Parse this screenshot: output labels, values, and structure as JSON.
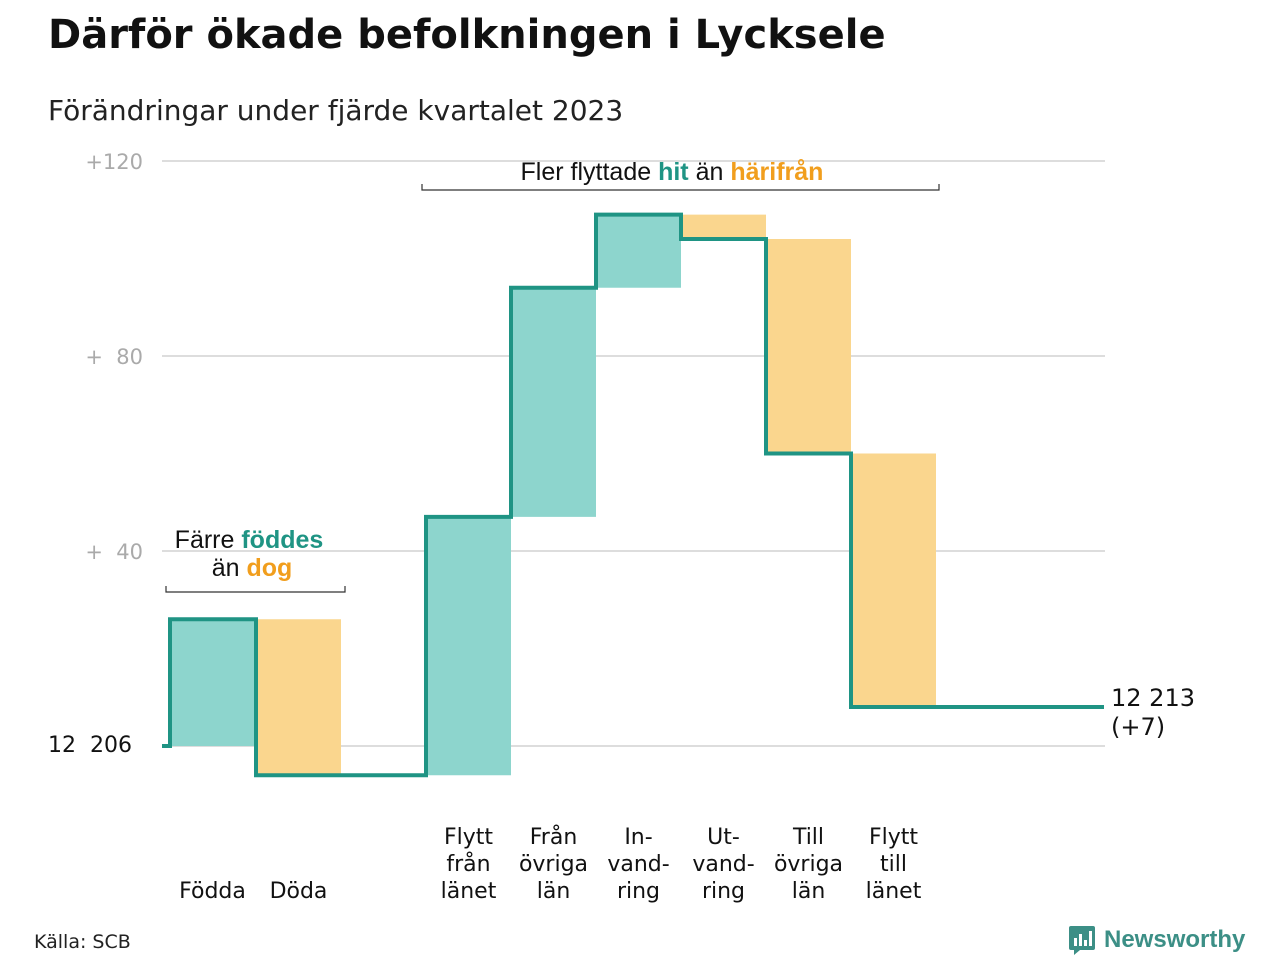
{
  "header": {
    "title": "Därför ökade befolkningen i Lycksele",
    "subtitle": "Förändringar under fjärde kvartalet 2023"
  },
  "chart_data": {
    "type": "bar",
    "subtype": "waterfall",
    "start_value": 12206,
    "start_label": "12  206",
    "end_value": 12213,
    "end_label": "12 213",
    "end_change_label": "(+7)",
    "y_ticks": [
      {
        "value": 120,
        "label": "+120"
      },
      {
        "value": 80,
        "label": "+  80"
      },
      {
        "value": 40,
        "label": "+  40"
      },
      {
        "value": 0,
        "label": ""
      }
    ],
    "ylim": [
      -6,
      120
    ],
    "grid": true,
    "steps": [
      {
        "label": "Födda",
        "delta": 26,
        "direction": "in"
      },
      {
        "label": "Döda",
        "delta": -32,
        "direction": "out"
      },
      {
        "label": "Flytt\nfrån\nlänet",
        "delta": 53,
        "direction": "in"
      },
      {
        "label": "Från\növriga\nlän",
        "delta": 47,
        "direction": "in"
      },
      {
        "label": "In-\nvand-\nring",
        "delta": 15,
        "direction": "in"
      },
      {
        "label": "Ut-\nvand-\nring",
        "delta": -5,
        "direction": "out"
      },
      {
        "label": "Till\növriga\nlän",
        "delta": -44,
        "direction": "out"
      },
      {
        "label": "Flytt\ntill\nlänet",
        "delta": -52,
        "direction": "out"
      }
    ],
    "annotations": {
      "birth": {
        "pre": "Färre",
        "highlight1": "föddes",
        "line2_pre": "än",
        "highlight2": "dog"
      },
      "migration": {
        "pre": "Fler flyttade",
        "highlight1": "hit",
        "mid": "än",
        "highlight2": "härifrån"
      }
    },
    "colors": {
      "in_fill": "#8dd5cd",
      "out_fill": "#fad68e",
      "line": "#1f9484",
      "in_text": "#1f9484",
      "out_text": "#f19e1d",
      "grid": "#dddddd",
      "tick_text": "#aaaaaa"
    }
  },
  "footer": {
    "source": "Källa: SCB",
    "brand": "Newsworthy",
    "brand_icon": "bar-chart-icon"
  }
}
